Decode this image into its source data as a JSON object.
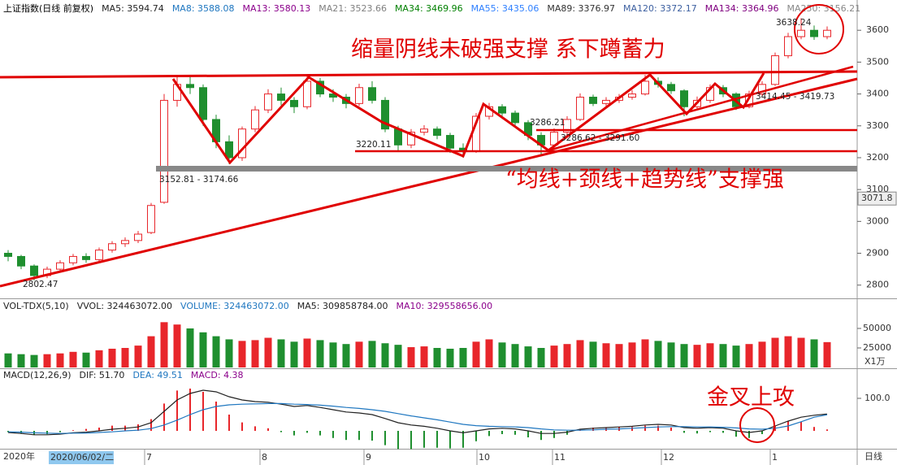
{
  "chart_data": {
    "type": "candlestick",
    "title": "上证指数(日线 前复权)",
    "ma_labels": [
      {
        "label": "MA5: 3594.74",
        "color": "#222"
      },
      {
        "label": "MA8: 3588.08",
        "color": "#1f77c0"
      },
      {
        "label": "MA13: 3580.13",
        "color": "#8b008b"
      },
      {
        "label": "MA21: 3523.66",
        "color": "#808080"
      },
      {
        "label": "MA34: 3469.96",
        "color": "#008000"
      },
      {
        "label": "MA55: 3435.06",
        "color": "#2f80ff"
      },
      {
        "label": "MA89: 3376.97",
        "color": "#333"
      },
      {
        "label": "MA120: 3372.17",
        "color": "#3c5fa0"
      },
      {
        "label": "MA134: 3364.96",
        "color": "#800080"
      },
      {
        "label": "MA250: 3156.21",
        "color": "#888"
      }
    ],
    "up_color": "#e8262b",
    "down_color": "#1f8f2f",
    "candles": [
      [
        2900,
        2890,
        2910,
        2875
      ],
      [
        2890,
        2860,
        2895,
        2850
      ],
      [
        2860,
        2830,
        2865,
        2815
      ],
      [
        2830,
        2850,
        2858,
        2822
      ],
      [
        2850,
        2870,
        2878,
        2842
      ],
      [
        2870,
        2890,
        2898,
        2862
      ],
      [
        2890,
        2880,
        2900,
        2870
      ],
      [
        2880,
        2910,
        2918,
        2872
      ],
      [
        2910,
        2930,
        2938,
        2902
      ],
      [
        2930,
        2940,
        2950,
        2920
      ],
      [
        2940,
        2960,
        2970,
        2932
      ],
      [
        2965,
        3050,
        3058,
        2960
      ],
      [
        3060,
        3380,
        3400,
        3055
      ],
      [
        3380,
        3430,
        3460,
        3360
      ],
      [
        3430,
        3420,
        3458,
        3400
      ],
      [
        3420,
        3320,
        3430,
        3300
      ],
      [
        3320,
        3250,
        3335,
        3230
      ],
      [
        3250,
        3200,
        3270,
        3180
      ],
      [
        3200,
        3290,
        3298,
        3190
      ],
      [
        3290,
        3350,
        3362,
        3280
      ],
      [
        3350,
        3400,
        3415,
        3340
      ],
      [
        3400,
        3380,
        3420,
        3365
      ],
      [
        3380,
        3360,
        3390,
        3340
      ],
      [
        3360,
        3440,
        3458,
        3352
      ],
      [
        3440,
        3400,
        3450,
        3390
      ],
      [
        3400,
        3390,
        3415,
        3375
      ],
      [
        3390,
        3370,
        3400,
        3355
      ],
      [
        3370,
        3420,
        3432,
        3362
      ],
      [
        3420,
        3380,
        3440,
        3370
      ],
      [
        3380,
        3290,
        3390,
        3280
      ],
      [
        3290,
        3240,
        3300,
        3220
      ],
      [
        3240,
        3280,
        3290,
        3230
      ],
      [
        3280,
        3290,
        3302,
        3270
      ],
      [
        3290,
        3270,
        3298,
        3258
      ],
      [
        3270,
        3230,
        3278,
        3215
      ],
      [
        3230,
        3220,
        3245,
        3200
      ],
      [
        3220,
        3330,
        3340,
        3215
      ],
      [
        3330,
        3360,
        3372,
        3320
      ],
      [
        3360,
        3340,
        3368,
        3330
      ],
      [
        3340,
        3310,
        3348,
        3300
      ],
      [
        3310,
        3270,
        3318,
        3255
      ],
      [
        3270,
        3240,
        3280,
        3210
      ],
      [
        3240,
        3280,
        3292,
        3232
      ],
      [
        3280,
        3320,
        3330,
        3270
      ],
      [
        3320,
        3390,
        3402,
        3315
      ],
      [
        3390,
        3370,
        3398,
        3362
      ],
      [
        3370,
        3380,
        3390,
        3360
      ],
      [
        3380,
        3390,
        3400,
        3372
      ],
      [
        3390,
        3400,
        3412,
        3382
      ],
      [
        3400,
        3440,
        3460,
        3395
      ],
      [
        3440,
        3430,
        3452,
        3420
      ],
      [
        3430,
        3410,
        3438,
        3400
      ],
      [
        3410,
        3360,
        3415,
        3330
      ],
      [
        3360,
        3380,
        3392,
        3352
      ],
      [
        3380,
        3420,
        3430,
        3372
      ],
      [
        3420,
        3400,
        3428,
        3390
      ],
      [
        3400,
        3360,
        3405,
        3350
      ],
      [
        3360,
        3400,
        3410,
        3355
      ],
      [
        3400,
        3430,
        3440,
        3392
      ],
      [
        3430,
        3520,
        3530,
        3425
      ],
      [
        3520,
        3580,
        3592,
        3512
      ],
      [
        3580,
        3600,
        3638,
        3572
      ],
      [
        3600,
        3580,
        3615,
        3570
      ],
      [
        3580,
        3600,
        3612,
        3572
      ]
    ],
    "ylim": [
      2761,
      3695
    ],
    "yticks": [
      2800,
      2900,
      3000,
      3100,
      3200,
      3300,
      3400,
      3500,
      3600
    ],
    "current_marker": 3071.8,
    "price_labels": [
      "2802.47",
      "3152.81 - 3174.66",
      "3220.11",
      "3286.21",
      "3286.62 - 3291.60",
      "3414.45 - 3419.73",
      "3638.24"
    ],
    "annotations": [
      "缩量阴线未破强支撑  系下蹲蓄力",
      "“均线+颈线+趋势线”支撑强",
      "金叉上攻"
    ],
    "volume": {
      "labels": [
        {
          "label": "VOL-TDX(5,10)",
          "color": "#222"
        },
        {
          "label": "VVOL: 324463072.00",
          "color": "#222"
        },
        {
          "label": "VOLUME: 324463072.00",
          "color": "#1f77c0"
        },
        {
          "label": "MA5: 309858784.00",
          "color": "#222"
        },
        {
          "label": "MA10: 329558656.00",
          "color": "#8b008b"
        }
      ],
      "values": [
        18000,
        17000,
        16000,
        17000,
        18000,
        20000,
        19000,
        22000,
        24000,
        25000,
        28000,
        40000,
        58000,
        55000,
        50000,
        45000,
        40000,
        36000,
        34000,
        35000,
        38000,
        36000,
        33000,
        37000,
        35000,
        32000,
        30000,
        33000,
        34000,
        31000,
        29000,
        26000,
        27000,
        25000,
        24000,
        25000,
        33000,
        36000,
        32000,
        30000,
        27000,
        25000,
        28000,
        30000,
        35000,
        33000,
        31000,
        30000,
        32000,
        36000,
        34000,
        32000,
        30000,
        29000,
        31000,
        30000,
        28000,
        30000,
        33000,
        38000,
        40000,
        38000,
        36000,
        32446
      ],
      "ylim": [
        0,
        75000
      ],
      "yticks": [
        25000,
        50000
      ],
      "unit": "X1万"
    },
    "macd": {
      "labels": [
        {
          "label": "MACD(12,26,9)",
          "color": "#222"
        },
        {
          "label": "DIF: 51.70",
          "color": "#222"
        },
        {
          "label": "DEA: 49.51",
          "color": "#1f77c0"
        },
        {
          "label": "MACD: 4.38",
          "color": "#8b008b"
        }
      ],
      "dif": [
        -5,
        -8,
        -12,
        -12,
        -10,
        -6,
        -4,
        0,
        5,
        8,
        12,
        25,
        60,
        95,
        115,
        125,
        120,
        105,
        95,
        90,
        88,
        82,
        75,
        78,
        72,
        65,
        58,
        55,
        50,
        38,
        25,
        18,
        14,
        8,
        0,
        -6,
        0,
        6,
        8,
        6,
        0,
        -8,
        -8,
        -4,
        5,
        8,
        10,
        12,
        14,
        18,
        20,
        18,
        10,
        8,
        10,
        8,
        0,
        -5,
        0,
        15,
        30,
        42,
        48,
        51.7
      ],
      "dea": [
        -3,
        -4,
        -6,
        -7,
        -8,
        -7,
        -7,
        -5,
        -3,
        0,
        2,
        7,
        18,
        33,
        50,
        65,
        75,
        80,
        82,
        83,
        84,
        84,
        82,
        81,
        79,
        76,
        72,
        69,
        65,
        60,
        53,
        46,
        40,
        34,
        27,
        20,
        16,
        14,
        13,
        12,
        10,
        6,
        3,
        2,
        2,
        3,
        5,
        6,
        8,
        10,
        12,
        13,
        13,
        12,
        12,
        11,
        9,
        6,
        5,
        8,
        15,
        28,
        42,
        49.51
      ],
      "hist": [
        -4,
        -8,
        -12,
        -10,
        -4,
        2,
        6,
        10,
        16,
        16,
        20,
        36,
        84,
        124,
        130,
        120,
        90,
        50,
        26,
        14,
        8,
        -4,
        -14,
        -6,
        -14,
        -22,
        -28,
        -28,
        -30,
        -44,
        -56,
        -56,
        -52,
        -52,
        -54,
        -52,
        -32,
        -16,
        -10,
        -12,
        -20,
        -28,
        -22,
        -12,
        6,
        10,
        10,
        12,
        12,
        16,
        16,
        10,
        -6,
        -8,
        -4,
        -6,
        -18,
        -22,
        -10,
        14,
        30,
        28,
        12,
        4.38
      ],
      "ylim": [
        -50,
        150
      ],
      "yticks": [
        {
          "value": 100,
          "label": "100.0"
        }
      ]
    },
    "x_axis": {
      "year": "2020年",
      "cursor": "2020/06/02/二",
      "months": [
        "7",
        "8",
        "9",
        "10",
        "11",
        "12",
        "1"
      ],
      "period": "日线"
    }
  }
}
